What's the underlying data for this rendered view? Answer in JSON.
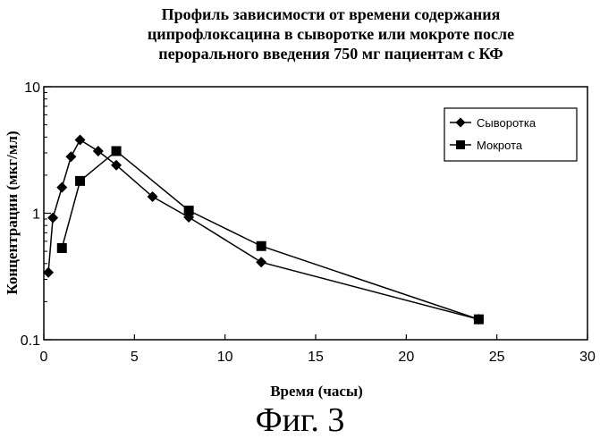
{
  "chart_data": {
    "type": "line",
    "title_lines": [
      "Профиль зависимости от времени содержания",
      "ципрофлоксацина в сыворотке или мокроте после",
      "перорального введения 750 мг пациентам с КФ"
    ],
    "xlabel": "Время (часы)",
    "ylabel": "Концентрации (мкг/мл)",
    "xlim": [
      0,
      30
    ],
    "ylim": [
      0.1,
      10
    ],
    "yscale": "log",
    "x_ticks": [
      0,
      5,
      10,
      15,
      20,
      25,
      30
    ],
    "y_ticks": [
      {
        "value": 0.1,
        "label": "0.1"
      },
      {
        "value": 1,
        "label": "1"
      },
      {
        "value": 10,
        "label": "10"
      }
    ],
    "grid": false,
    "legend_position": "top-right",
    "series": [
      {
        "name": "Сыворотка",
        "marker": "diamond",
        "x": [
          0.25,
          0.5,
          1,
          1.5,
          2,
          3,
          4,
          6,
          8,
          12,
          24
        ],
        "y": [
          0.34,
          0.92,
          1.6,
          2.8,
          3.8,
          3.1,
          2.4,
          1.35,
          0.93,
          0.41,
          0.145
        ]
      },
      {
        "name": "Мокрота",
        "marker": "square",
        "x": [
          1,
          2,
          4,
          8,
          12,
          24
        ],
        "y": [
          0.53,
          1.8,
          3.1,
          1.05,
          0.55,
          0.145
        ]
      }
    ]
  },
  "caption": "Фиг. 3"
}
